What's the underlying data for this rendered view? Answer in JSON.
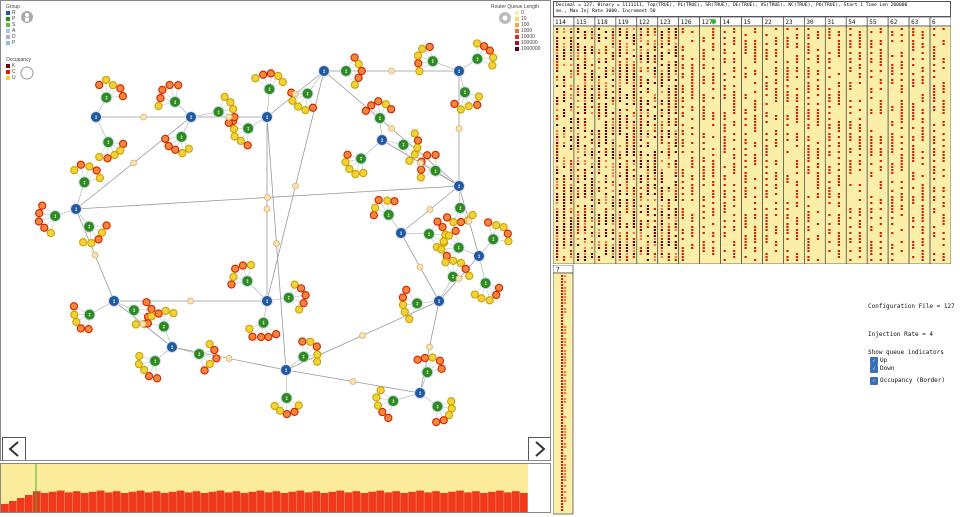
{
  "legend": {
    "group_title": "Group",
    "group_items": [
      {
        "label": "R",
        "color": "#1f5aa0"
      },
      {
        "label": "P",
        "color": "#2e8b1e"
      },
      {
        "label": "S",
        "color": "#6db33f"
      },
      {
        "label": "A",
        "color": "#9ec9e8"
      },
      {
        "label": "D",
        "color": "#b5a8c9"
      },
      {
        "label": "P",
        "color": "#8fbcd8"
      }
    ],
    "occupancy_title": "Occupancy",
    "occupancy_items": [
      {
        "label": "K",
        "color": "#6b0000"
      },
      {
        "label": "C",
        "color": "#d62000"
      },
      {
        "label": "U",
        "color": "#f2d23a"
      }
    ],
    "queue_title": "Router Queue Length",
    "queue_items": [
      {
        "label": "0",
        "color": "#fbf1a8"
      },
      {
        "label": "10",
        "color": "#f8d76c"
      },
      {
        "label": "100",
        "color": "#f4a940"
      },
      {
        "label": "1000",
        "color": "#ee6f2a"
      },
      {
        "label": "10000",
        "color": "#dd2a1c"
      },
      {
        "label": "100000",
        "color": "#a8101a"
      },
      {
        "label": "1000000",
        "color": "#5c0010"
      }
    ]
  },
  "nav": {
    "prev_label": "<",
    "next_label": ">"
  },
  "header_text": "Decimal = 127, Binary = 1111111, Top(TRUE), PL(TRUE), SR(TRUE), DE(TRUE), VS(TRUE), NC(TRUE), PO(TRUE), Start 1 Time Len 200000\nms., Max Inj Rate 3000, Increment 50",
  "heatmap_columns": [
    "114",
    "115",
    "118",
    "119",
    "122",
    "123",
    "126",
    "127",
    "14",
    "15",
    "22",
    "23",
    "30",
    "31",
    "54",
    "55",
    "62",
    "63",
    "6"
  ],
  "heatmap2_columns": [
    "7"
  ],
  "controls": {
    "config_label": "Configuration File = 127",
    "injection_label": "Injection Rate = 4",
    "queue_indicator_title": "Show queue indicators",
    "up_label": "Up",
    "down_label": "Down",
    "occupancy_label": "Occupancy (Border)"
  },
  "colors": {
    "router": "#1f5aa0",
    "switch": "#2e8b1e",
    "leaf_fill": "#f2d23a",
    "leaf_hot": "#d62000",
    "bar": "#f0381c",
    "bar_bg": "#fbeb9a"
  }
}
